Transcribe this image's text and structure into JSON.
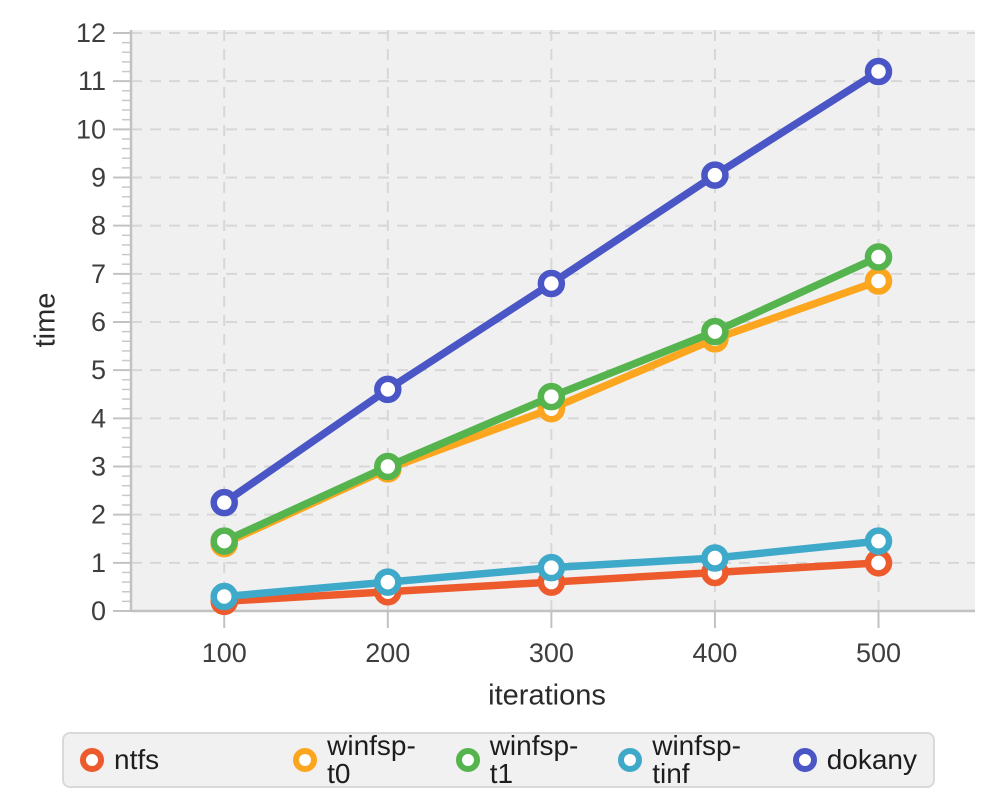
{
  "chart_data": {
    "type": "line",
    "title": "",
    "xlabel": "iterations",
    "ylabel": "time",
    "x": [
      100,
      200,
      300,
      400,
      500
    ],
    "xticks": [
      100,
      200,
      300,
      400,
      500
    ],
    "yticks": [
      0,
      1,
      2,
      3,
      4,
      5,
      6,
      7,
      8,
      9,
      10,
      11,
      12
    ],
    "xlim": [
      43,
      559
    ],
    "ylim": [
      0,
      12
    ],
    "y_minor_tick_step": 0.2,
    "grid": "dashed",
    "marker": "open-circle",
    "legend_position": "bottom",
    "series": [
      {
        "name": "ntfs",
        "color": "#ed5a2c",
        "values": [
          0.2,
          0.4,
          0.6,
          0.8,
          1.0
        ]
      },
      {
        "name": "winfsp-t0",
        "color": "#fba61e",
        "values": [
          1.4,
          2.95,
          4.2,
          5.65,
          6.85
        ]
      },
      {
        "name": "winfsp-t1",
        "color": "#56b44e",
        "values": [
          1.45,
          3.0,
          4.45,
          5.8,
          7.35
        ]
      },
      {
        "name": "winfsp-tinf",
        "color": "#3fa9c9",
        "values": [
          0.3,
          0.6,
          0.9,
          1.1,
          1.45
        ]
      },
      {
        "name": "dokany",
        "color": "#4a55c6",
        "values": [
          2.25,
          4.6,
          6.8,
          9.05,
          11.2
        ]
      }
    ],
    "style": {
      "page_bg": "#ffffff",
      "plot_bg": "#f0f0f1",
      "grid_color": "#d7d7d7",
      "axis_color": "#c2c2c2",
      "minor_tick_color": "#c9c9c9",
      "tick_label_color": "#3e3e3e",
      "axis_title_color": "#2b2b2b",
      "legend_bg": "#f1f1f1",
      "legend_border": "#d9d9d9",
      "legend_text_color": "#1d1d1f"
    }
  }
}
